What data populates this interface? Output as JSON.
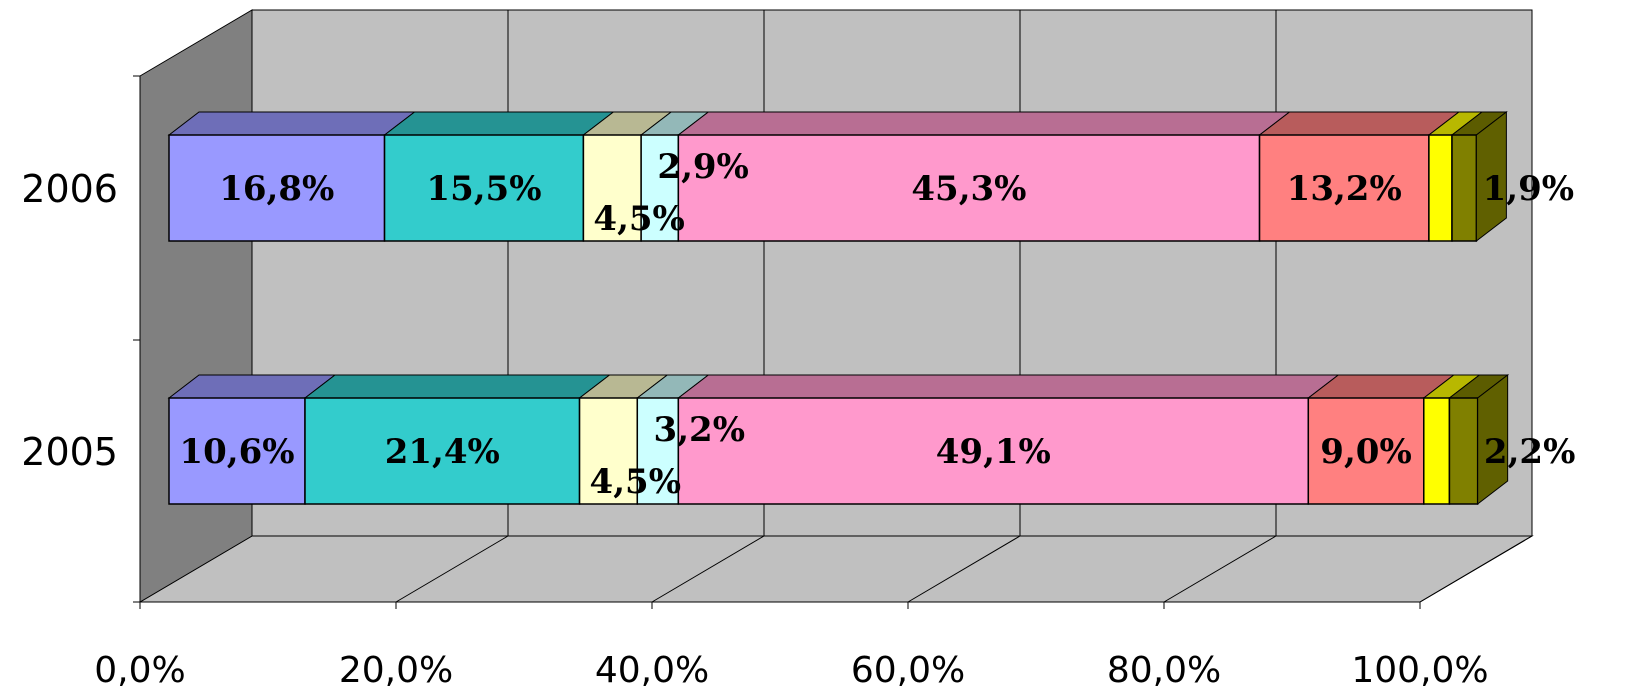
{
  "chart_data": {
    "type": "bar",
    "orientation": "horizontal",
    "stacked": "percent",
    "style_3d": true,
    "grid": true,
    "legend": "none",
    "categories": [
      "2005",
      "2006"
    ],
    "xlim": [
      0,
      100
    ],
    "x_ticks": [
      0,
      20,
      40,
      60,
      80,
      100
    ],
    "tick_labels": [
      "0,0%",
      "20,0%",
      "40,0%",
      "60,0%",
      "80,0%",
      "100,0%"
    ],
    "series": [
      {
        "color": "#9999ff",
        "values": [
          10.6,
          16.8
        ],
        "labels": [
          "10,6%",
          "16,8%"
        ]
      },
      {
        "color": "#33cccc",
        "values": [
          21.4,
          15.5
        ],
        "labels": [
          "21,4%",
          "15,5%"
        ]
      },
      {
        "color": "#ffffcc",
        "values": [
          4.5,
          4.5
        ],
        "labels": [
          "4,5%",
          "4,5%"
        ]
      },
      {
        "color": "#ccffff",
        "values": [
          3.2,
          2.9
        ],
        "labels": [
          "3,2%",
          "2,9%"
        ]
      },
      {
        "color": "#ff99cc",
        "values": [
          49.1,
          45.3
        ],
        "labels": [
          "49,1%",
          "45,3%"
        ]
      },
      {
        "color": "#ff8080",
        "values": [
          9.0,
          13.2
        ],
        "labels": [
          "9,0%",
          "13,2%"
        ]
      },
      {
        "color": "#ffff00",
        "values": [
          2.0,
          1.8
        ],
        "labels": [
          "",
          ""
        ]
      },
      {
        "color": "#808000",
        "values": [
          2.2,
          1.9
        ],
        "labels": [
          "2,2%",
          "1,9%"
        ]
      }
    ],
    "colors": {
      "wall": "#c0c0c0",
      "side_wall": "#808080",
      "floor": "#c0c0c0",
      "grid": "#000000"
    }
  }
}
